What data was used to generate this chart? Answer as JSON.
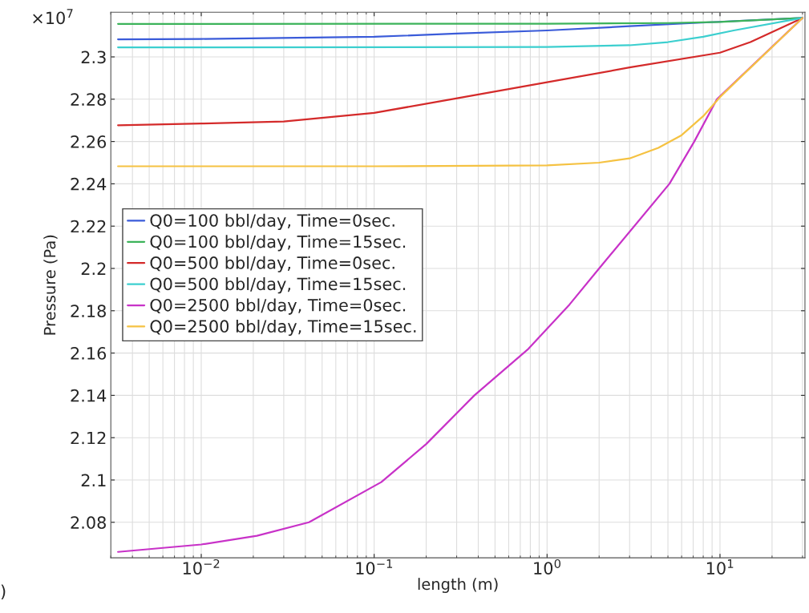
{
  "chart_data": {
    "type": "line",
    "xlabel": "length (m)",
    "ylabel": "Pressure (Pa)",
    "annotations": [
      "×10$^{7}$",
      ")"
    ],
    "log": "x",
    "grid": true,
    "legend": "left",
    "marker": "none",
    "line_style": "solid",
    "xlim": [
      0.003,
      31
    ],
    "xticks": [
      {
        "value": 0.01,
        "label": "10$^{−2}$"
      },
      {
        "value": 0.1,
        "label": "10$^{−1}$"
      },
      {
        "value": 1,
        "label": "10$^{0}$"
      },
      {
        "value": 10,
        "label": "10$^{1}$"
      }
    ],
    "ylim": [
      2.0632,
      2.3211
    ],
    "yticks": [
      2.08,
      {
        "value": 2.1,
        "label": "2.1"
      },
      2.12,
      2.14,
      2.16,
      2.18,
      {
        "value": 2.2,
        "label": "2.2"
      },
      2.22,
      2.24,
      2.26,
      2.28,
      {
        "value": 2.3,
        "label": "2.3"
      }
    ],
    "series": [
      {
        "name": "Q0=100 bbl/day, Time=0sec.",
        "color": "#3a5bd9",
        "x": [
          0.0033,
          0.01,
          0.1,
          0.3,
          1,
          3,
          7,
          30
        ],
        "values": [
          2.3083,
          2.3085,
          2.3095,
          2.311,
          2.3125,
          2.3145,
          2.316,
          2.3184
        ]
      },
      {
        "name": "Q0=100 bbl/day, Time=15sec.",
        "color": "#3cb35a",
        "x": [
          0.0033,
          1,
          5,
          10,
          30
        ],
        "values": [
          2.3156,
          2.3157,
          2.316,
          2.3165,
          2.3184
        ]
      },
      {
        "name": "Q0=500 bbl/day, Time=0sec.",
        "color": "#d42a2a",
        "x": [
          0.0033,
          0.01,
          0.03,
          0.1,
          0.28,
          1,
          3,
          10,
          15,
          30
        ],
        "values": [
          2.2677,
          2.2685,
          2.2695,
          2.2735,
          2.28,
          2.288,
          2.295,
          2.302,
          2.307,
          2.3184
        ]
      },
      {
        "name": "Q0=500 bbl/day, Time=15sec.",
        "color": "#3ccfcf",
        "x": [
          0.0033,
          1,
          3,
          5,
          8,
          12,
          30
        ],
        "values": [
          2.3045,
          2.3047,
          2.3055,
          2.307,
          2.3095,
          2.3125,
          2.3184
        ]
      },
      {
        "name": "Q0=2500 bbl/day, Time=0sec.",
        "color": "#c832c8",
        "x": [
          0.0033,
          0.01,
          0.021,
          0.042,
          0.11,
          0.2,
          0.38,
          0.78,
          1.35,
          2.0,
          5.1,
          7.1,
          9.6,
          30
        ],
        "values": [
          2.066,
          2.0695,
          2.0736,
          2.08,
          2.099,
          2.117,
          2.14,
          2.162,
          2.183,
          2.2,
          2.24,
          2.26,
          2.28,
          2.3184
        ]
      },
      {
        "name": "Q0=2500 bbl/day, Time=15sec.",
        "color": "#f5c242",
        "x": [
          0.0033,
          0.1,
          1,
          2,
          3,
          4.4,
          6,
          8,
          10,
          13,
          30
        ],
        "values": [
          2.2483,
          2.2483,
          2.2487,
          2.25,
          2.252,
          2.257,
          2.263,
          2.272,
          2.281,
          2.29,
          2.3184
        ]
      }
    ]
  }
}
